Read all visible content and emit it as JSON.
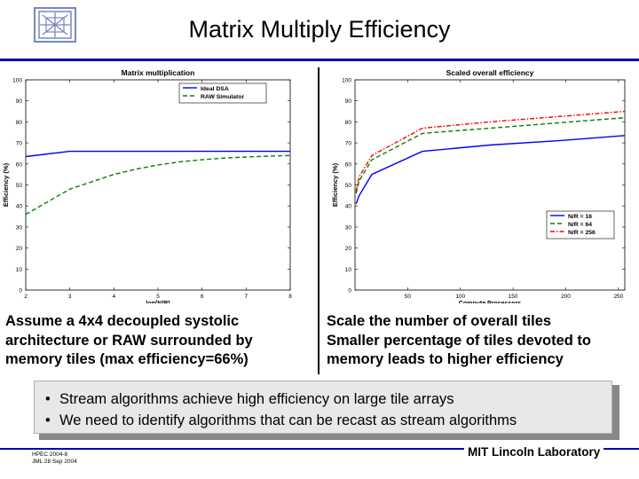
{
  "slide": {
    "title": "Matrix Multiply Efficiency",
    "caption_left": [
      "Assume a 4x4 decoupled systolic",
      "architecture or RAW surrounded by",
      "memory tiles (max efficiency=66%)"
    ],
    "caption_right": [
      "Scale the number of overall tiles",
      "Smaller percentage of tiles devoted to",
      "memory leads to  higher efficiency"
    ],
    "bullets": [
      "Stream algorithms achieve high efficiency on large tile arrays",
      "We need to identify algorithms that can be recast as stream algorithms"
    ],
    "bullet_symbol": "•",
    "footer": {
      "conference": "HPEC 2004-8",
      "author_date": "JML 28 Sep 2004",
      "organization": "MIT Lincoln Laboratory"
    }
  },
  "colors": {
    "accent_rule": "#0000aa",
    "series_blue": "#0000ff",
    "series_green": "#008000",
    "series_red": "#ff0000",
    "callout_bg": "#e8e8e8"
  },
  "chart_data": [
    {
      "type": "line",
      "title": "Matrix multiplication",
      "xlabel": "log(N/R)",
      "ylabel": "Efficiency (%)",
      "xlim": [
        2,
        8
      ],
      "ylim": [
        0,
        100
      ],
      "xticks": [
        2,
        3,
        4,
        5,
        6,
        7,
        8
      ],
      "yticks": [
        0,
        10,
        20,
        30,
        40,
        50,
        60,
        70,
        80,
        90,
        100
      ],
      "legend_position": "top-right",
      "series": [
        {
          "name": "Ideal DSA",
          "color": "#0000ff",
          "dash": "solid",
          "x": [
            2,
            3,
            4,
            5,
            6,
            7,
            8
          ],
          "y": [
            63.5,
            66,
            66,
            66,
            66,
            66,
            66
          ]
        },
        {
          "name": "RAW Simulator",
          "color": "#008000",
          "dash": "dashed",
          "x": [
            2,
            2.5,
            3,
            3.5,
            4,
            4.5,
            5,
            5.5,
            6,
            6.5,
            7,
            7.5,
            8
          ],
          "y": [
            36,
            42,
            48,
            51.5,
            55,
            57.5,
            59.5,
            61,
            62,
            62.8,
            63.3,
            63.7,
            64
          ]
        }
      ]
    },
    {
      "type": "line",
      "title": "Scaled overall efficiency",
      "xlabel": "Compute Processors",
      "ylabel": "Efficiency (%)",
      "xlim": [
        0,
        256
      ],
      "ylim": [
        0,
        100
      ],
      "xticks": [
        50,
        100,
        150,
        200,
        250
      ],
      "yticks": [
        0,
        10,
        20,
        30,
        40,
        50,
        60,
        70,
        80,
        90,
        100
      ],
      "legend_position": "bottom-right",
      "series": [
        {
          "name": "N/R = 16",
          "color": "#0000ff",
          "dash": "solid",
          "x": [
            1,
            4,
            16,
            64,
            128,
            192,
            256
          ],
          "y": [
            41,
            45,
            55,
            66,
            69,
            71,
            73.5
          ]
        },
        {
          "name": "N/R = 64",
          "color": "#008000",
          "dash": "dashed",
          "x": [
            1,
            4,
            16,
            64,
            128,
            192,
            256
          ],
          "y": [
            46,
            52,
            62,
            74.5,
            77,
            79.5,
            82
          ]
        },
        {
          "name": "N/R = 256",
          "color": "#ff0000",
          "dash": "dashdot",
          "x": [
            1,
            4,
            16,
            64,
            128,
            192,
            256
          ],
          "y": [
            47,
            54,
            64,
            77,
            80,
            82.5,
            85
          ]
        }
      ]
    }
  ]
}
